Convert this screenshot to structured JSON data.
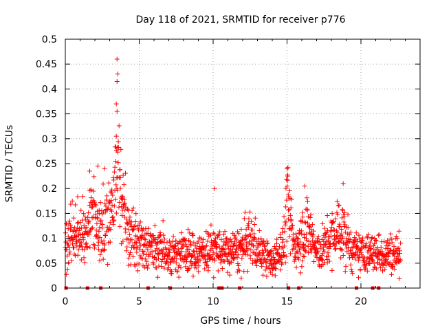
{
  "chart_data": {
    "type": "scatter",
    "title": "Day 118 of 2021, SRMTID for receiver p776",
    "xlabel": "GPS time / hours",
    "ylabel": "SRMTID / TECUs",
    "xlim": [
      0,
      24
    ],
    "ylim": [
      0,
      0.5
    ],
    "x_ticks": [
      0,
      5,
      10,
      15,
      20
    ],
    "x_tick_labels": [
      "0",
      "5",
      "10",
      "15",
      "20"
    ],
    "y_ticks": [
      0,
      0.05,
      0.1,
      0.15,
      0.2,
      0.25,
      0.3,
      0.35,
      0.4,
      0.45,
      0.5
    ],
    "y_tick_labels": [
      "0",
      "0.05",
      "0.1",
      "0.15",
      "0.2",
      "0.25",
      "0.3",
      "0.35",
      "0.4",
      "0.45",
      "0.5"
    ],
    "grid": true,
    "marker": "+",
    "color": "#ff0000",
    "x_range_of_data": [
      0.0,
      22.7
    ],
    "zero_markers_x": [
      0.05,
      1.5,
      2.4,
      5.6,
      7.1,
      10.4,
      10.6,
      11.8,
      15.1,
      15.8,
      19.7,
      20.8,
      21.2
    ],
    "series": [
      {
        "name": "SRMTID",
        "envelope": [
          {
            "x": 0.0,
            "y": 0.08
          },
          {
            "x": 0.5,
            "y": 0.11
          },
          {
            "x": 1.0,
            "y": 0.11
          },
          {
            "x": 1.5,
            "y": 0.1
          },
          {
            "x": 1.8,
            "y": 0.16
          },
          {
            "x": 2.2,
            "y": 0.1
          },
          {
            "x": 2.7,
            "y": 0.14
          },
          {
            "x": 3.2,
            "y": 0.17
          },
          {
            "x": 3.5,
            "y": 0.27
          },
          {
            "x": 3.9,
            "y": 0.15
          },
          {
            "x": 4.5,
            "y": 0.1
          },
          {
            "x": 5.0,
            "y": 0.09
          },
          {
            "x": 6.0,
            "y": 0.08
          },
          {
            "x": 7.0,
            "y": 0.07
          },
          {
            "x": 8.0,
            "y": 0.07
          },
          {
            "x": 9.0,
            "y": 0.07
          },
          {
            "x": 10.0,
            "y": 0.08
          },
          {
            "x": 11.0,
            "y": 0.07
          },
          {
            "x": 12.0,
            "y": 0.08
          },
          {
            "x": 12.5,
            "y": 0.1
          },
          {
            "x": 13.0,
            "y": 0.08
          },
          {
            "x": 14.0,
            "y": 0.05
          },
          {
            "x": 14.8,
            "y": 0.09
          },
          {
            "x": 15.0,
            "y": 0.17
          },
          {
            "x": 15.5,
            "y": 0.08
          },
          {
            "x": 16.0,
            "y": 0.11
          },
          {
            "x": 16.5,
            "y": 0.12
          },
          {
            "x": 17.0,
            "y": 0.07
          },
          {
            "x": 17.5,
            "y": 0.08
          },
          {
            "x": 18.0,
            "y": 0.1
          },
          {
            "x": 18.5,
            "y": 0.12
          },
          {
            "x": 19.0,
            "y": 0.1
          },
          {
            "x": 19.5,
            "y": 0.07
          },
          {
            "x": 20.0,
            "y": 0.07
          },
          {
            "x": 21.0,
            "y": 0.07
          },
          {
            "x": 22.0,
            "y": 0.07
          },
          {
            "x": 22.7,
            "y": 0.07
          }
        ],
        "notable_points": [
          {
            "x": 3.5,
            "y": 0.46
          },
          {
            "x": 3.55,
            "y": 0.43
          },
          {
            "x": 3.5,
            "y": 0.415
          },
          {
            "x": 3.45,
            "y": 0.37
          },
          {
            "x": 3.5,
            "y": 0.355
          },
          {
            "x": 3.45,
            "y": 0.305
          },
          {
            "x": 15.0,
            "y": 0.24
          },
          {
            "x": 15.05,
            "y": 0.225
          },
          {
            "x": 16.2,
            "y": 0.205
          },
          {
            "x": 18.8,
            "y": 0.21
          },
          {
            "x": 10.1,
            "y": 0.2
          },
          {
            "x": 1.65,
            "y": 0.235
          },
          {
            "x": 2.2,
            "y": 0.245
          },
          {
            "x": 2.65,
            "y": 0.24
          },
          {
            "x": 11.9,
            "y": 0.02
          },
          {
            "x": 14.2,
            "y": 0.025
          }
        ]
      }
    ]
  }
}
